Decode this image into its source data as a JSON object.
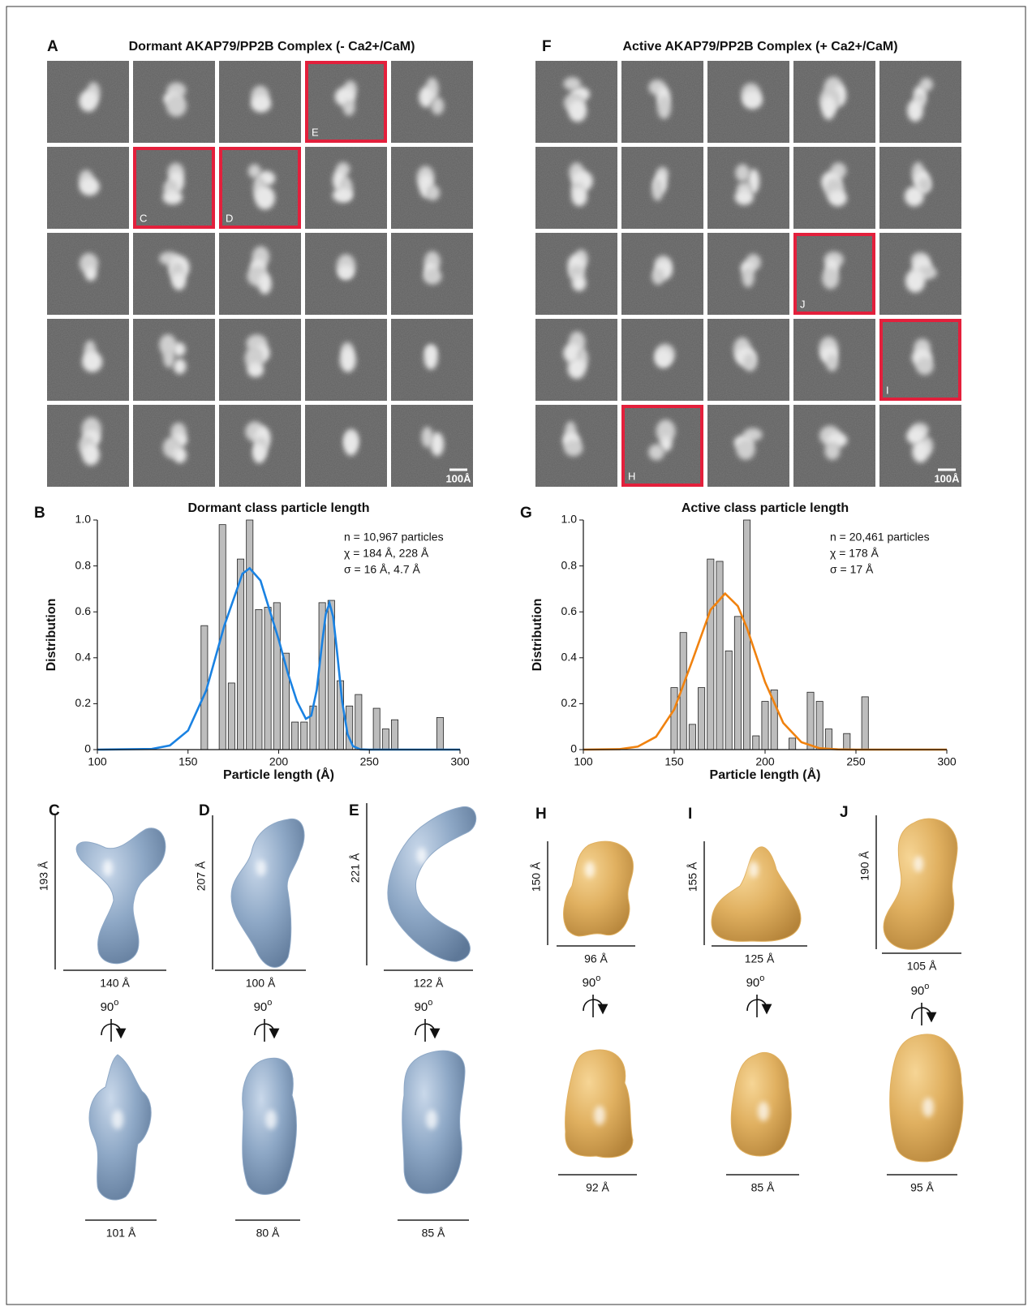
{
  "panels": [
    {
      "letter": "A",
      "title": "Dormant AKAP79/PP2B Complex (- Ca2+/CaM)",
      "scale_bar": "100Å",
      "highlights": [
        {
          "label": "E",
          "row": 0,
          "col": 3
        },
        {
          "label": "C",
          "row": 1,
          "col": 1
        },
        {
          "label": "D",
          "row": 1,
          "col": 2
        }
      ]
    },
    {
      "letter": "F",
      "title": "Active AKAP79/PP2B Complex (+ Ca2+/CaM)",
      "scale_bar": "100Å",
      "highlights": [
        {
          "label": "J",
          "row": 2,
          "col": 3
        },
        {
          "label": "I",
          "row": 3,
          "col": 4
        },
        {
          "label": "H",
          "row": 4,
          "col": 1
        }
      ]
    }
  ],
  "chart_data": [
    {
      "type": "histogram",
      "letter": "B",
      "title": "Dormant class particle length",
      "xlabel": "Particle length (Å)",
      "ylabel": "Distribution",
      "bins": [
        156.5,
        161.5,
        166.5,
        171.5,
        176.5,
        181.5,
        186.5,
        191.5,
        196.5,
        201.5,
        206.5,
        211.5,
        216.5,
        221.5,
        226.5,
        231.5,
        236.5,
        241.5,
        246.5,
        251.5,
        256.5,
        261.5,
        266.5,
        271.5,
        276.5,
        281.5,
        286.5,
        291.5
      ],
      "values": [
        0.54,
        0,
        0.98,
        0.29,
        0.83,
        1.0,
        0.61,
        0.62,
        0.64,
        0.42,
        0.12,
        0.12,
        0.19,
        0.64,
        0.65,
        0.3,
        0.19,
        0.24,
        0,
        0.18,
        0.09,
        0.13,
        0,
        0,
        0,
        0,
        0.14
      ],
      "bar_color": "#bdbdbd",
      "curve": {
        "color": "#1a82e2",
        "x": [
          100,
          130,
          140,
          150,
          160,
          170,
          180,
          184,
          190,
          200,
          205,
          210,
          215,
          218,
          221,
          224,
          226,
          228,
          230,
          232,
          235,
          238,
          241,
          245,
          250,
          300
        ],
        "values": [
          0,
          0.003,
          0.018,
          0.083,
          0.257,
          0.539,
          0.766,
          0.79,
          0.736,
          0.479,
          0.334,
          0.211,
          0.134,
          0.148,
          0.26,
          0.467,
          0.591,
          0.638,
          0.579,
          0.441,
          0.21,
          0.067,
          0.015,
          0.001,
          0,
          0
        ]
      },
      "xlim": [
        100,
        300
      ],
      "xticks": [
        100,
        150,
        200,
        250,
        300
      ],
      "ylim": [
        0,
        1
      ],
      "yticks": [
        0,
        0.2,
        0.4,
        0.6,
        0.8,
        {
          "value": 1,
          "label": "1.0"
        }
      ],
      "annotations": [
        "n = 10,967 particles",
        "χ = 184 Å, 228 Å",
        "σ = 16 Å, 4.7 Å"
      ]
    },
    {
      "type": "histogram",
      "letter": "G",
      "title": "Active class particle length",
      "xlabel": "Particle length (Å)",
      "ylabel": "Distribution",
      "bins": [
        147.5,
        152.5,
        157.5,
        162.5,
        167.5,
        172.5,
        177.5,
        182.5,
        187.5,
        192.5,
        197.5,
        202.5,
        207.5,
        212.5,
        217.5,
        222.5,
        227.5,
        232.5,
        237.5,
        242.5,
        247.5,
        252.5,
        257.5
      ],
      "values": [
        0.27,
        0.51,
        0.11,
        0.27,
        0.83,
        0.82,
        0.43,
        0.58,
        1.0,
        0.06,
        0.21,
        0.26,
        0,
        0.05,
        0,
        0.25,
        0.21,
        0.09,
        0,
        0.07,
        0,
        0.23
      ],
      "bar_color": "#bdbdbd",
      "curve": {
        "color": "#f0820f",
        "x": [
          100,
          120,
          130,
          140,
          150,
          160,
          170,
          178,
          185,
          190,
          200,
          210,
          220,
          230,
          240,
          250,
          300
        ],
        "values": [
          0,
          0.002,
          0.013,
          0.056,
          0.175,
          0.388,
          0.609,
          0.68,
          0.625,
          0.53,
          0.294,
          0.116,
          0.032,
          0.006,
          0.001,
          0,
          0
        ]
      },
      "xlim": [
        100,
        300
      ],
      "xticks": [
        100,
        150,
        200,
        250,
        300
      ],
      "ylim": [
        0,
        1
      ],
      "yticks": [
        0,
        0.2,
        0.4,
        0.6,
        0.8,
        {
          "value": 1,
          "label": "1.0"
        }
      ],
      "annotations": [
        "n = 20,461 particles",
        "χ = 178 Å",
        "σ =  17 Å"
      ]
    }
  ],
  "models": [
    {
      "letter": "C",
      "height": "193 Å",
      "width": "140 Å",
      "rotation": "90",
      "rotation_sup": "o",
      "side_width": "101 Å",
      "color": "#8ea8c6"
    },
    {
      "letter": "D",
      "height": "207 Å",
      "width": "100 Å",
      "rotation": "90",
      "rotation_sup": "o",
      "side_width": "80 Å",
      "color": "#8ea8c6"
    },
    {
      "letter": "E",
      "height": "221 Å",
      "width": "122 Å",
      "rotation": "90",
      "rotation_sup": "o",
      "side_width": "85 Å",
      "color": "#8ea8c6"
    },
    {
      "letter": "H",
      "height": "150 Å",
      "width": "96 Å",
      "rotation": "90",
      "rotation_sup": "o",
      "side_width": "92 Å",
      "color": "#e0b060"
    },
    {
      "letter": "I",
      "height": "155 Å",
      "width": "125 Å",
      "rotation": "90",
      "rotation_sup": "o",
      "side_width": "85 Å",
      "color": "#e0b060"
    },
    {
      "letter": "J",
      "height": "190 Å",
      "width": "105 Å",
      "rotation": "90",
      "rotation_sup": "o",
      "side_width": "95 Å",
      "color": "#e0b060"
    }
  ]
}
